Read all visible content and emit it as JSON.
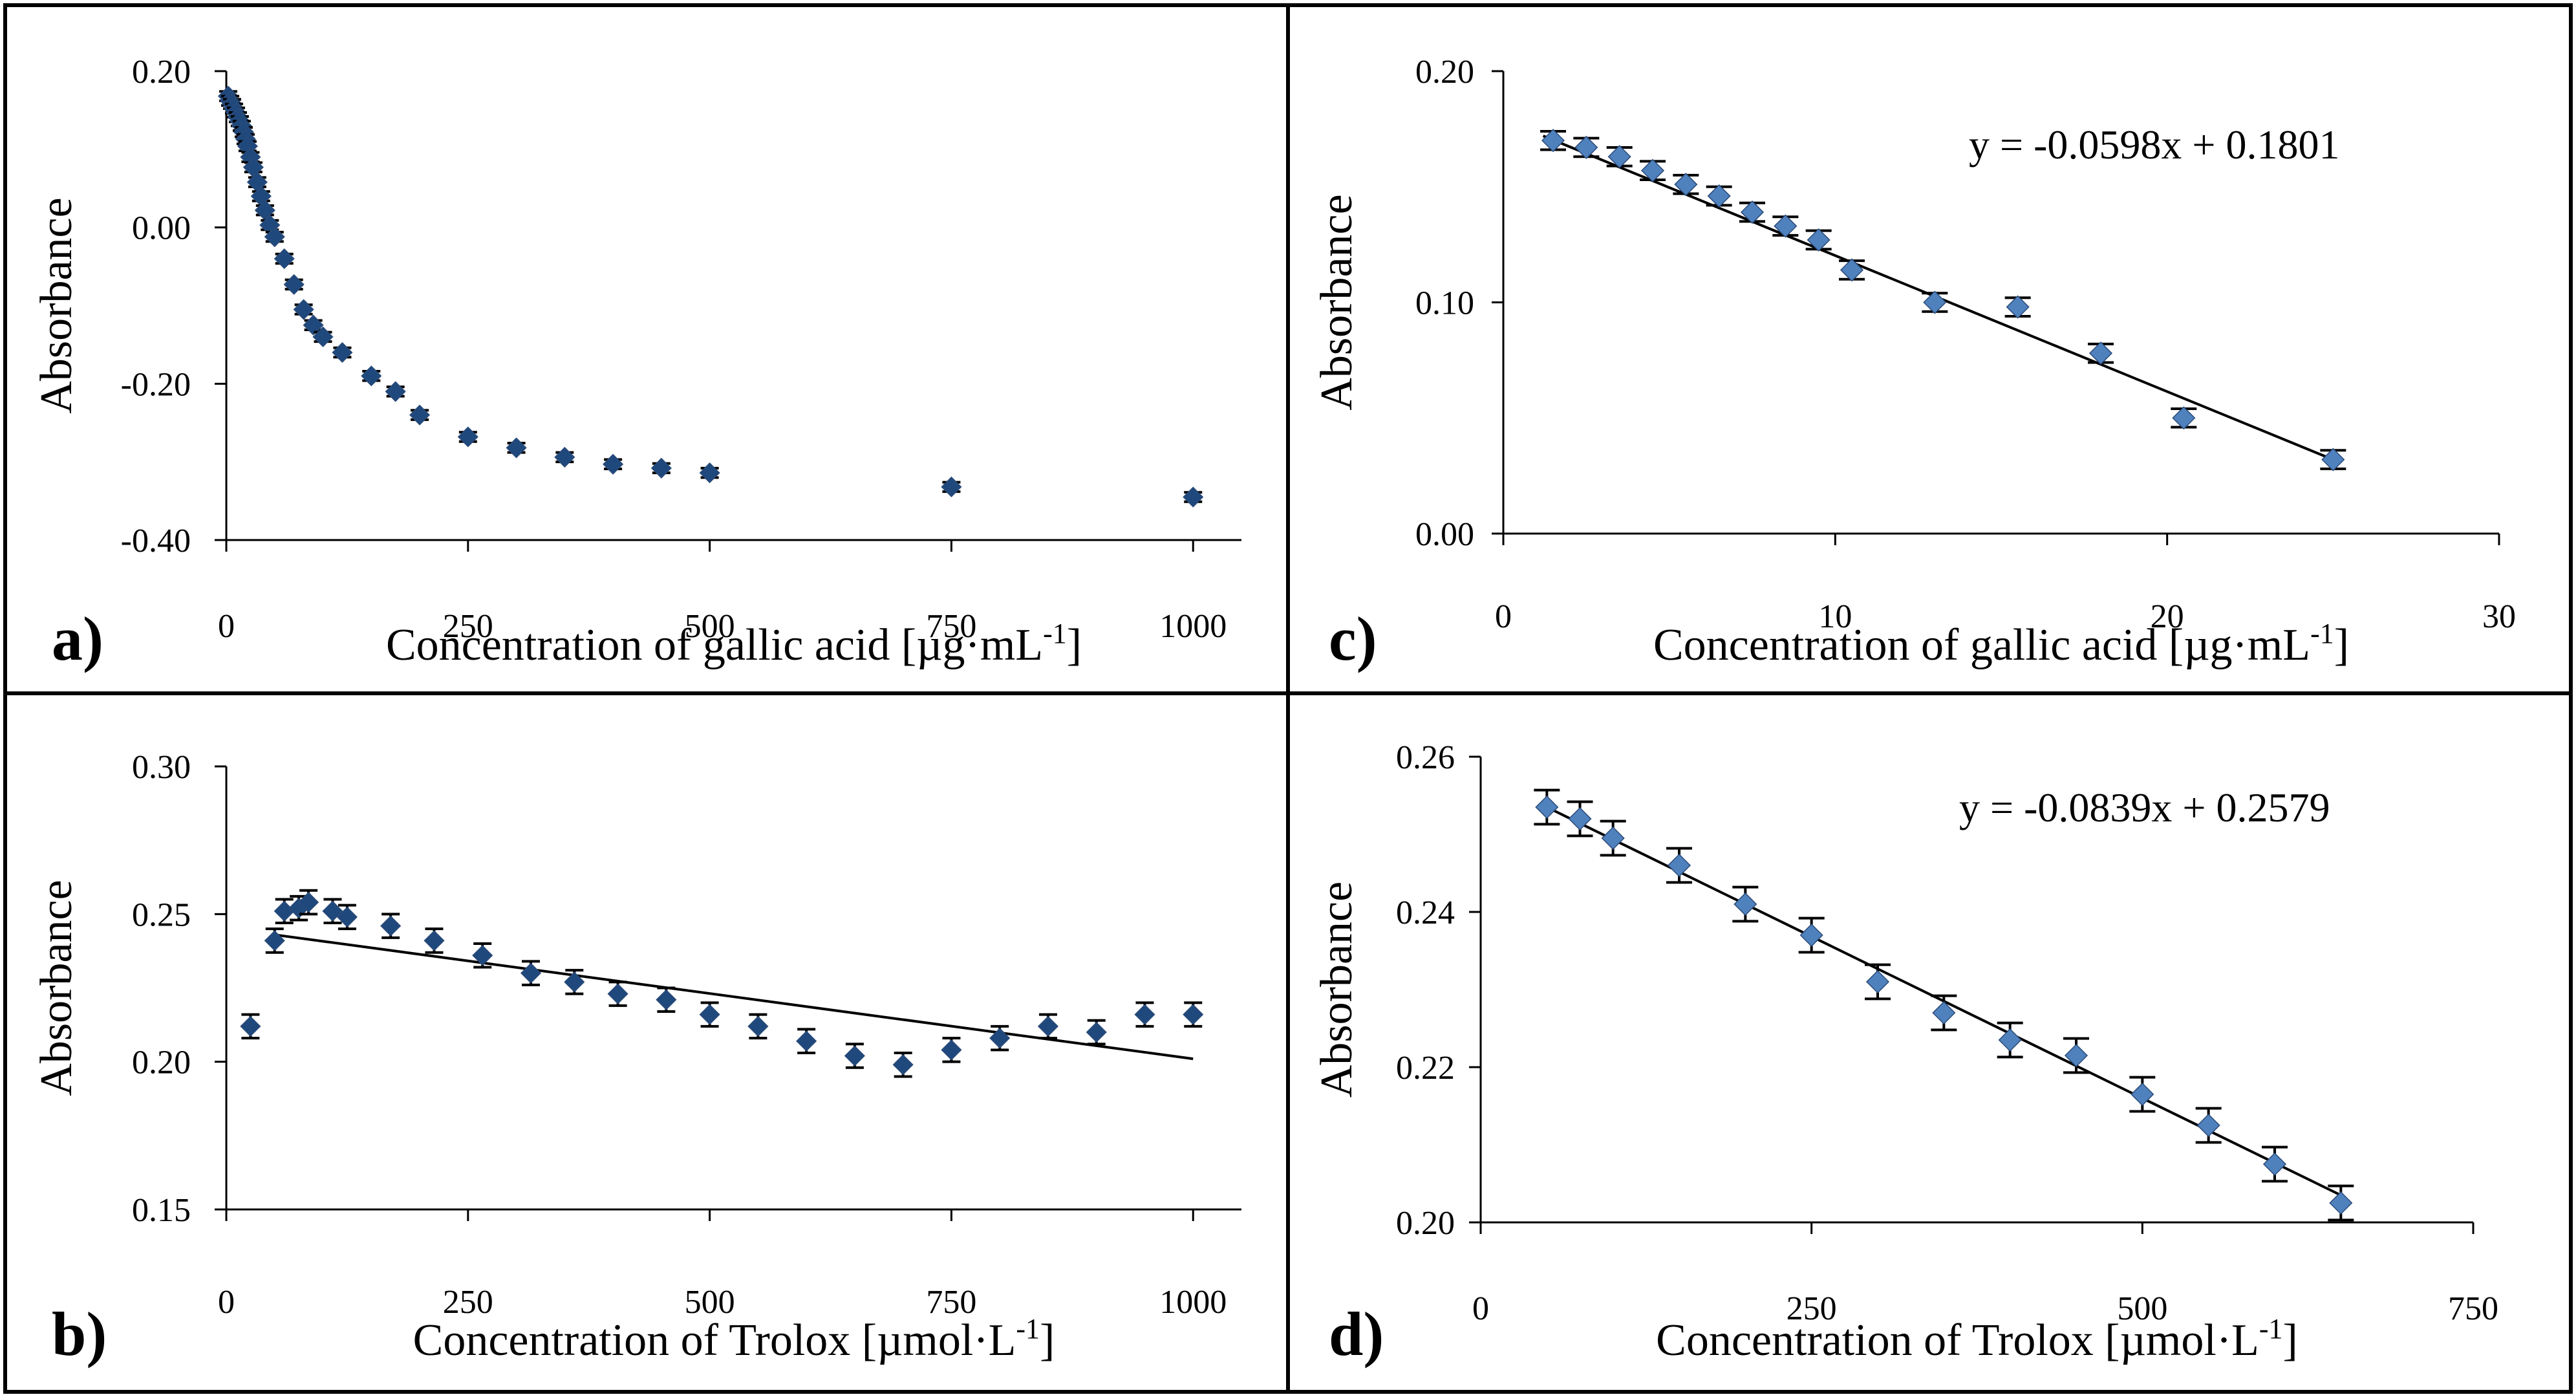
{
  "colors": {
    "marker": "#4F81BD",
    "marker_dark": "#1F497D",
    "axis": "#000000",
    "background": "#ffffff"
  },
  "chart_data": [
    {
      "id": "a",
      "type": "scatter",
      "panel_label": "a)",
      "xlabel": "Concentration of  gallic acid [µg·mL",
      "xlabel_sup": "-1",
      "xlabel_end": "]",
      "ylabel": "Absorbance",
      "xlim": [
        0,
        1050
      ],
      "ylim": [
        -0.4,
        0.2
      ],
      "xticks": [
        0,
        250,
        500,
        750,
        1000
      ],
      "xtick_labels": [
        "0",
        "250",
        "500",
        "750",
        "1000"
      ],
      "yticks": [
        0.2,
        0.0,
        -0.2,
        -0.4
      ],
      "ytick_labels": [
        "0.20",
        "0.00",
        "-0.20",
        "-0.40"
      ],
      "marker_style": "dark",
      "err": 0.006,
      "x": [
        2,
        4,
        6,
        8,
        10,
        12,
        14,
        16,
        18,
        20,
        22,
        25,
        28,
        32,
        36,
        40,
        45,
        50,
        60,
        70,
        80,
        90,
        100,
        120,
        150,
        175,
        200,
        250,
        300,
        350,
        400,
        450,
        500,
        750,
        1000
      ],
      "y": [
        0.168,
        0.162,
        0.158,
        0.152,
        0.147,
        0.141,
        0.136,
        0.13,
        0.122,
        0.113,
        0.104,
        0.09,
        0.077,
        0.058,
        0.04,
        0.022,
        0.003,
        -0.012,
        -0.04,
        -0.073,
        -0.105,
        -0.125,
        -0.14,
        -0.16,
        -0.19,
        -0.21,
        -0.24,
        -0.268,
        -0.282,
        -0.294,
        -0.303,
        -0.308,
        -0.314,
        -0.332,
        -0.345
      ]
    },
    {
      "id": "b",
      "type": "scatter",
      "panel_label": "b)",
      "xlabel": "Concentration of  Trolox  [µmol·L",
      "xlabel_sup": "-1",
      "xlabel_end": "]",
      "ylabel": "Absorbance",
      "xlim": [
        0,
        1050
      ],
      "ylim": [
        0.15,
        0.3
      ],
      "xticks": [
        0,
        250,
        500,
        750,
        1000
      ],
      "xtick_labels": [
        "0",
        "250",
        "500",
        "750",
        "1000"
      ],
      "yticks": [
        0.3,
        0.25,
        0.2,
        0.15
      ],
      "ytick_labels": [
        "0.30",
        "0.25",
        "0.20",
        "0.15"
      ],
      "marker_style": "dark",
      "err": 0.004,
      "x": [
        25,
        50,
        60,
        75,
        85,
        110,
        125,
        170,
        215,
        265,
        315,
        360,
        405,
        455,
        500,
        550,
        600,
        650,
        700,
        750,
        800,
        850,
        900,
        950,
        1000
      ],
      "y": [
        0.212,
        0.241,
        0.251,
        0.252,
        0.254,
        0.251,
        0.249,
        0.246,
        0.241,
        0.236,
        0.23,
        0.227,
        0.223,
        0.221,
        0.216,
        0.212,
        0.207,
        0.202,
        0.199,
        0.204,
        0.208,
        0.212,
        0.21,
        0.216,
        0.216
      ],
      "trendline": {
        "x": [
          50,
          1000
        ],
        "y": [
          0.243,
          0.201
        ]
      }
    },
    {
      "id": "c",
      "type": "scatter",
      "panel_label": "c)",
      "xlabel": "Concentration of  gallic acid [µg·mL",
      "xlabel_sup": "-1",
      "xlabel_end": "]",
      "ylabel": "Absorbance",
      "xlim": [
        0,
        30
      ],
      "ylim": [
        0.0,
        0.2
      ],
      "xticks": [
        0,
        10,
        20,
        30
      ],
      "xtick_labels": [
        "0",
        "10",
        "20",
        "30"
      ],
      "yticks": [
        0.2,
        0.1,
        0.0
      ],
      "ytick_labels": [
        "0.20",
        "0.10",
        "0.00"
      ],
      "marker_style": "light",
      "err": 0.004,
      "equation": "y = -0.0598x + 0.1801",
      "x": [
        1.5,
        2.5,
        3.5,
        4.5,
        5.5,
        6.5,
        7.5,
        8.5,
        9.5,
        10.5,
        13,
        15.5,
        18,
        20.5,
        25
      ],
      "y": [
        0.17,
        0.167,
        0.163,
        0.157,
        0.151,
        0.146,
        0.139,
        0.133,
        0.127,
        0.114,
        0.1,
        0.098,
        0.078,
        0.05,
        0.032
      ],
      "trendline": {
        "x": [
          1.2,
          25
        ],
        "y": [
          0.172,
          0.032
        ]
      }
    },
    {
      "id": "d",
      "type": "scatter",
      "panel_label": "d)",
      "xlabel": "Concentration of  Trolox  [µmol·L",
      "xlabel_sup": "-1",
      "xlabel_end": "]",
      "ylabel": "Absorbance",
      "xlim": [
        0,
        750
      ],
      "ylim": [
        0.2,
        0.26
      ],
      "xticks": [
        0,
        250,
        500,
        750
      ],
      "xtick_labels": [
        "0",
        "250",
        "500",
        "750"
      ],
      "yticks": [
        0.26,
        0.24,
        0.22,
        0.2
      ],
      "ytick_labels": [
        "0.26",
        "0.24",
        "0.22",
        "0.20"
      ],
      "marker_style": "light",
      "err": 0.0022,
      "equation": "y = -0.0839x + 0.2579",
      "x": [
        50,
        75,
        100,
        150,
        200,
        250,
        300,
        350,
        400,
        450,
        500,
        550,
        600,
        650
      ],
      "y": [
        0.2535,
        0.252,
        0.2495,
        0.246,
        0.241,
        0.237,
        0.231,
        0.227,
        0.2235,
        0.2215,
        0.2165,
        0.2125,
        0.2075,
        0.2025
      ],
      "trendline": {
        "x": [
          50,
          650
        ],
        "y": [
          0.2535,
          0.2035
        ]
      }
    }
  ]
}
